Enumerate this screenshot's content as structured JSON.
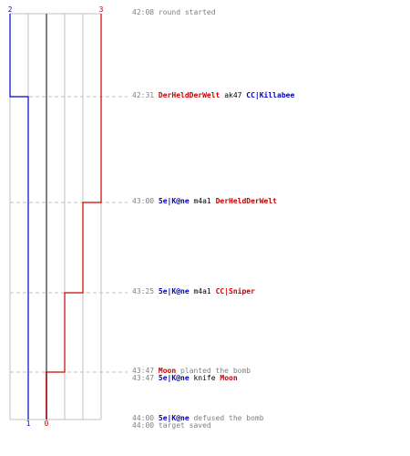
{
  "score": {
    "ct_start": "2",
    "t_start": "3",
    "ct_end": "1",
    "t_end": "0"
  },
  "colors": {
    "ct": "#0000cc",
    "t": "#cc0000",
    "grid": "#c0c0c0",
    "guide": "#c0c0c0",
    "center": "#808080",
    "text": "#808080"
  },
  "events": [
    {
      "time": "42:08",
      "parts": [
        {
          "text": "round started",
          "kind": "text"
        }
      ]
    },
    {
      "time": "42:31",
      "parts": [
        {
          "text": "DerHeldDerWelt",
          "kind": "t"
        },
        {
          "text": "ak47",
          "kind": "weapon"
        },
        {
          "text": "CC|Killabee",
          "kind": "ct"
        }
      ]
    },
    {
      "time": "43:00",
      "parts": [
        {
          "text": "5e|K@ne",
          "kind": "ct"
        },
        {
          "text": "m4a1",
          "kind": "weapon"
        },
        {
          "text": "DerHeldDerWelt",
          "kind": "t"
        }
      ]
    },
    {
      "time": "43:25",
      "parts": [
        {
          "text": "5e|K@ne",
          "kind": "ct"
        },
        {
          "text": "m4a1",
          "kind": "weapon"
        },
        {
          "text": "CC|Sniper",
          "kind": "t"
        }
      ]
    },
    {
      "time": "43:47",
      "parts": [
        {
          "text": "Moon",
          "kind": "t"
        },
        {
          "text": "planted the bomb",
          "kind": "text"
        }
      ]
    },
    {
      "time": "43:47",
      "parts": [
        {
          "text": "5e|K@ne",
          "kind": "ct"
        },
        {
          "text": "knife",
          "kind": "weapon"
        },
        {
          "text": "Moon",
          "kind": "t"
        }
      ]
    },
    {
      "time": "44:00",
      "parts": [
        {
          "text": "5e|K@ne",
          "kind": "ct"
        },
        {
          "text": "defused the bomb",
          "kind": "text"
        }
      ]
    },
    {
      "time": "44:00",
      "parts": [
        {
          "text": "target saved",
          "kind": "text"
        }
      ]
    }
  ]
}
